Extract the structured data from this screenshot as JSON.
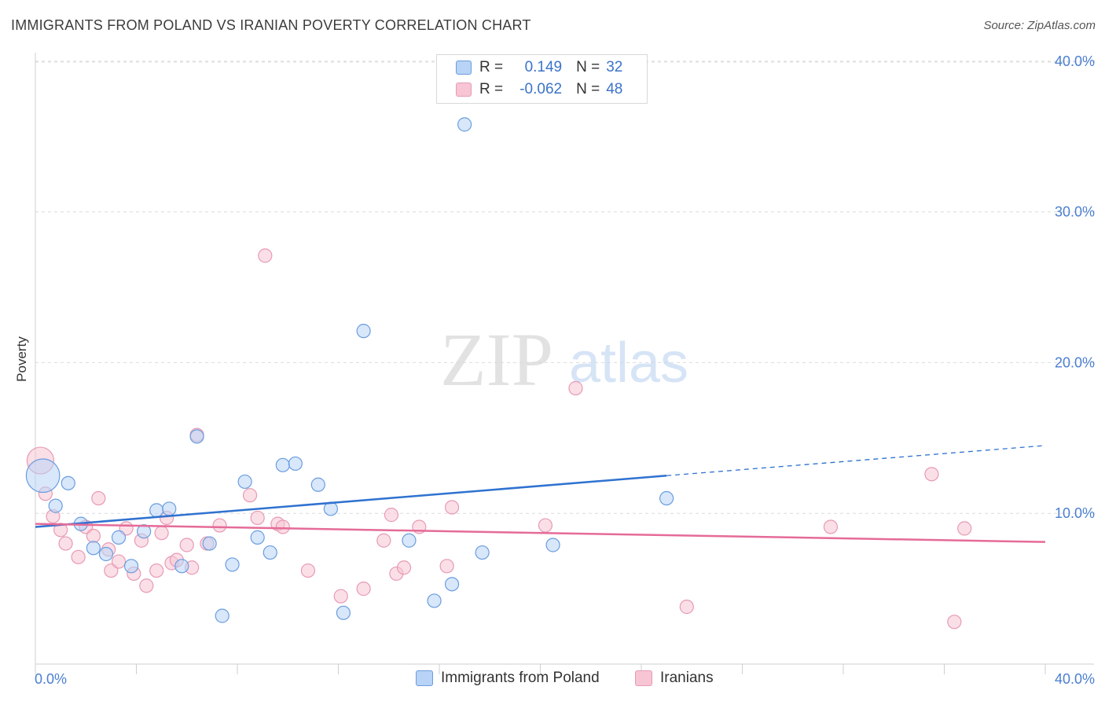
{
  "title": "IMMIGRANTS FROM POLAND VS IRANIAN POVERTY CORRELATION CHART",
  "source": "Source: ZipAtlas.com",
  "watermark": {
    "zip": "ZIP",
    "atlas": "atlas"
  },
  "legend": {
    "rows": [
      {
        "r_label": "R =",
        "r_value": "0.149",
        "n_label": "N =",
        "n_value": "32"
      },
      {
        "r_label": "R =",
        "r_value": "-0.062",
        "n_label": "N =",
        "n_value": "48"
      }
    ]
  },
  "bottom_legend": [
    "Immigrants from Poland",
    "Iranians"
  ],
  "colors": {
    "poland_fill": "#b8d3f5",
    "poland_stroke": "#6a9de0",
    "poland_line": "#2f72d0",
    "iran_fill": "#f7c5d4",
    "iran_stroke": "#e79ab4",
    "iran_line": "#e56b98",
    "tick_label": "#4a7fd0",
    "grid": "#dcdcdc"
  },
  "chart_data": {
    "type": "scatter",
    "title": "IMMIGRANTS FROM POLAND VS IRANIAN POVERTY CORRELATION CHART",
    "ylabel": "Poverty",
    "xlabel": "",
    "xlim": [
      0,
      40
    ],
    "ylim": [
      0,
      40
    ],
    "x_tick_labels": [
      "0.0%",
      "40.0%"
    ],
    "y_ticks": [
      10,
      20,
      30,
      40
    ],
    "y_tick_labels": [
      "10.0%",
      "20.0%",
      "30.0%",
      "40.0%"
    ],
    "series": [
      {
        "name": "Immigrants from Poland",
        "r": 0.149,
        "n": 32,
        "trend": {
          "x0": 0,
          "y0": 9.1,
          "x1": 25,
          "y1": 12.5,
          "dash_x1": 40,
          "dash_y1": 14.5
        },
        "points": [
          {
            "x": 0.3,
            "y": 12.5,
            "s": 2.5
          },
          {
            "x": 0.8,
            "y": 10.5
          },
          {
            "x": 1.3,
            "y": 12.0
          },
          {
            "x": 1.8,
            "y": 9.3
          },
          {
            "x": 2.3,
            "y": 7.7
          },
          {
            "x": 2.8,
            "y": 7.3
          },
          {
            "x": 3.3,
            "y": 8.4
          },
          {
            "x": 3.8,
            "y": 6.5
          },
          {
            "x": 4.3,
            "y": 8.8
          },
          {
            "x": 4.8,
            "y": 10.2
          },
          {
            "x": 5.3,
            "y": 10.3
          },
          {
            "x": 5.8,
            "y": 6.5
          },
          {
            "x": 6.4,
            "y": 15.1
          },
          {
            "x": 6.9,
            "y": 8.0
          },
          {
            "x": 7.4,
            "y": 3.2
          },
          {
            "x": 7.8,
            "y": 6.6
          },
          {
            "x": 8.3,
            "y": 12.1
          },
          {
            "x": 8.8,
            "y": 8.4
          },
          {
            "x": 9.3,
            "y": 7.4
          },
          {
            "x": 9.8,
            "y": 13.2
          },
          {
            "x": 10.3,
            "y": 13.3
          },
          {
            "x": 11.2,
            "y": 11.9
          },
          {
            "x": 11.7,
            "y": 10.3
          },
          {
            "x": 12.2,
            "y": 3.4
          },
          {
            "x": 13.0,
            "y": 22.1
          },
          {
            "x": 14.8,
            "y": 8.2
          },
          {
            "x": 15.8,
            "y": 4.2
          },
          {
            "x": 16.5,
            "y": 5.3
          },
          {
            "x": 17.0,
            "y": 35.8
          },
          {
            "x": 17.7,
            "y": 7.4
          },
          {
            "x": 20.5,
            "y": 7.9
          },
          {
            "x": 25.0,
            "y": 11.0
          }
        ]
      },
      {
        "name": "Iranians",
        "r": -0.062,
        "n": 48,
        "trend": {
          "x0": 0,
          "y0": 9.3,
          "x1": 40,
          "y1": 8.1
        },
        "points": [
          {
            "x": 0.2,
            "y": 13.5,
            "s": 2.0
          },
          {
            "x": 0.4,
            "y": 11.3
          },
          {
            "x": 0.7,
            "y": 9.8
          },
          {
            "x": 1.0,
            "y": 8.9
          },
          {
            "x": 1.2,
            "y": 8.0
          },
          {
            "x": 1.7,
            "y": 7.1
          },
          {
            "x": 2.0,
            "y": 9.1
          },
          {
            "x": 2.3,
            "y": 8.5
          },
          {
            "x": 2.5,
            "y": 11.0
          },
          {
            "x": 2.9,
            "y": 7.6
          },
          {
            "x": 3.0,
            "y": 6.2
          },
          {
            "x": 3.3,
            "y": 6.8
          },
          {
            "x": 3.6,
            "y": 9.0
          },
          {
            "x": 3.9,
            "y": 6.0
          },
          {
            "x": 4.2,
            "y": 8.2
          },
          {
            "x": 4.4,
            "y": 5.2
          },
          {
            "x": 4.8,
            "y": 6.2
          },
          {
            "x": 5.0,
            "y": 8.7
          },
          {
            "x": 5.2,
            "y": 9.7
          },
          {
            "x": 5.4,
            "y": 6.7
          },
          {
            "x": 5.6,
            "y": 6.9
          },
          {
            "x": 6.0,
            "y": 7.9
          },
          {
            "x": 6.2,
            "y": 6.4
          },
          {
            "x": 6.4,
            "y": 15.2
          },
          {
            "x": 6.8,
            "y": 8.0
          },
          {
            "x": 7.3,
            "y": 9.2
          },
          {
            "x": 8.5,
            "y": 11.2
          },
          {
            "x": 8.8,
            "y": 9.7
          },
          {
            "x": 9.1,
            "y": 27.1
          },
          {
            "x": 9.6,
            "y": 9.3
          },
          {
            "x": 9.8,
            "y": 9.1
          },
          {
            "x": 10.8,
            "y": 6.2
          },
          {
            "x": 12.1,
            "y": 4.5
          },
          {
            "x": 13.0,
            "y": 5.0
          },
          {
            "x": 13.8,
            "y": 8.2
          },
          {
            "x": 14.1,
            "y": 9.9
          },
          {
            "x": 14.3,
            "y": 6.0
          },
          {
            "x": 14.6,
            "y": 6.4
          },
          {
            "x": 15.2,
            "y": 9.1
          },
          {
            "x": 16.3,
            "y": 6.5
          },
          {
            "x": 16.5,
            "y": 10.4
          },
          {
            "x": 20.2,
            "y": 9.2
          },
          {
            "x": 21.4,
            "y": 18.3
          },
          {
            "x": 25.8,
            "y": 3.8
          },
          {
            "x": 31.5,
            "y": 9.1
          },
          {
            "x": 35.5,
            "y": 12.6
          },
          {
            "x": 36.4,
            "y": 2.8
          },
          {
            "x": 36.8,
            "y": 9.0
          }
        ]
      }
    ]
  }
}
